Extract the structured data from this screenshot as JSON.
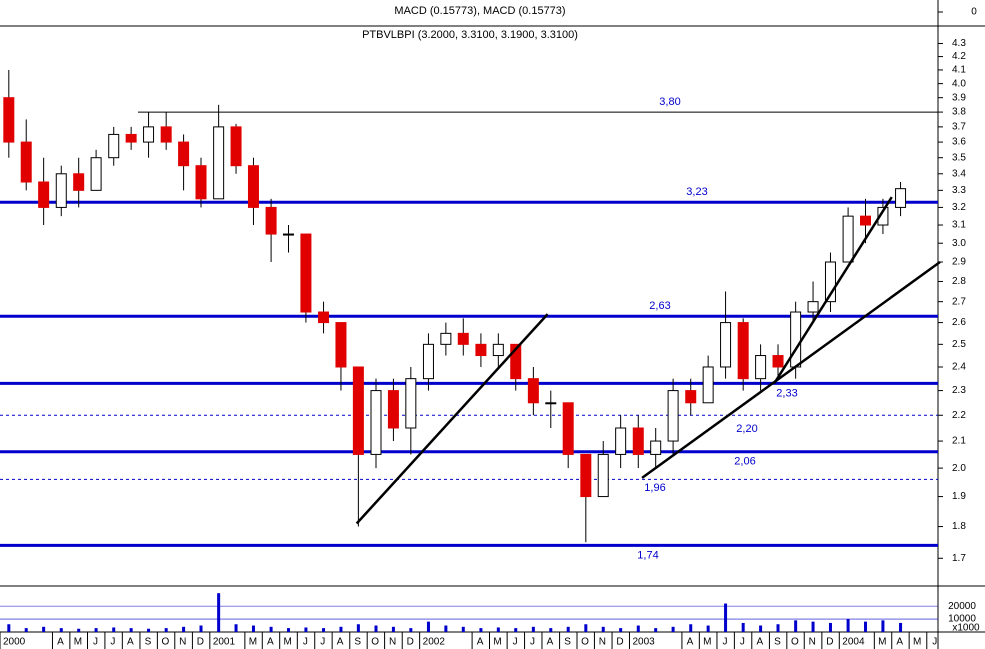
{
  "chart_data": {
    "type": "candlestick",
    "title": "PTBVLBPI (3.2000, 3.3100, 3.1900, 3.3100)",
    "indicator_label": "MACD (0.15773), MACD (0.15773)",
    "indicator_ticks": [
      0
    ],
    "up_color": "#ffffff",
    "down_color": "#e00000",
    "log": true,
    "ylim": [
      1.62,
      4.43
    ],
    "yticks": [
      1.7,
      1.8,
      1.9,
      {
        "value": 2,
        "label": "2.0"
      },
      2.1,
      2.2,
      2.3,
      2.4,
      2.5,
      2.6,
      2.7,
      2.8,
      2.9,
      {
        "value": 3,
        "label": "3.0"
      },
      3.1,
      3.2,
      3.3,
      3.4,
      3.5,
      3.6,
      3.7,
      3.8,
      3.9,
      {
        "value": 4,
        "label": "4.0"
      },
      4.1,
      4.2,
      4.3
    ],
    "xlim": [
      2000,
      2004.48
    ],
    "xticks": [
      2000,
      {
        "value": 2000.25,
        "label": "A"
      },
      {
        "value": 2000.333,
        "label": "M"
      },
      {
        "value": 2000.417,
        "label": "J"
      },
      {
        "value": 2000.5,
        "label": "J"
      },
      {
        "value": 2000.583,
        "label": "A"
      },
      {
        "value": 2000.667,
        "label": "S"
      },
      {
        "value": 2000.75,
        "label": "O"
      },
      {
        "value": 2000.833,
        "label": "N"
      },
      {
        "value": 2000.917,
        "label": "D"
      },
      2001,
      {
        "value": 2001.167,
        "label": "M"
      },
      {
        "value": 2001.25,
        "label": "A"
      },
      {
        "value": 2001.333,
        "label": "M"
      },
      {
        "value": 2001.417,
        "label": "J"
      },
      {
        "value": 2001.5,
        "label": "J"
      },
      {
        "value": 2001.583,
        "label": "A"
      },
      {
        "value": 2001.667,
        "label": "S"
      },
      {
        "value": 2001.75,
        "label": "O"
      },
      {
        "value": 2001.833,
        "label": "N"
      },
      {
        "value": 2001.917,
        "label": "D"
      },
      2002,
      {
        "value": 2002.25,
        "label": "A"
      },
      {
        "value": 2002.333,
        "label": "M"
      },
      {
        "value": 2002.417,
        "label": "J"
      },
      {
        "value": 2002.5,
        "label": "J"
      },
      {
        "value": 2002.583,
        "label": "A"
      },
      {
        "value": 2002.667,
        "label": "S"
      },
      {
        "value": 2002.75,
        "label": "O"
      },
      {
        "value": 2002.833,
        "label": "N"
      },
      {
        "value": 2002.917,
        "label": "D"
      },
      2003,
      {
        "value": 2003.25,
        "label": "A"
      },
      {
        "value": 2003.333,
        "label": "M"
      },
      {
        "value": 2003.417,
        "label": "J"
      },
      {
        "value": 2003.5,
        "label": "J"
      },
      {
        "value": 2003.583,
        "label": "A"
      },
      {
        "value": 2003.667,
        "label": "S"
      },
      {
        "value": 2003.75,
        "label": "O"
      },
      {
        "value": 2003.833,
        "label": "N"
      },
      {
        "value": 2003.917,
        "label": "D"
      },
      2004,
      {
        "value": 2004.167,
        "label": "M"
      },
      {
        "value": 2004.25,
        "label": "A"
      },
      {
        "value": 2004.333,
        "label": "M"
      },
      {
        "value": 2004.417,
        "label": "J"
      }
    ],
    "x": [
      2000.042,
      2000.125,
      2000.208,
      2000.292,
      2000.375,
      2000.458,
      2000.542,
      2000.625,
      2000.708,
      2000.792,
      2000.875,
      2000.958,
      2001.042,
      2001.125,
      2001.208,
      2001.292,
      2001.375,
      2001.458,
      2001.542,
      2001.625,
      2001.708,
      2001.792,
      2001.875,
      2001.958,
      2002.042,
      2002.125,
      2002.208,
      2002.292,
      2002.375,
      2002.458,
      2002.542,
      2002.625,
      2002.708,
      2002.792,
      2002.875,
      2002.958,
      2003.042,
      2003.125,
      2003.208,
      2003.292,
      2003.375,
      2003.458,
      2003.542,
      2003.625,
      2003.708,
      2003.792,
      2003.875,
      2003.958,
      2004.042,
      2004.125,
      2004.208,
      2004.292
    ],
    "open": [
      3.9,
      3.6,
      3.35,
      3.2,
      3.4,
      3.3,
      3.5,
      3.65,
      3.6,
      3.7,
      3.6,
      3.45,
      3.25,
      3.7,
      3.45,
      3.2,
      3.05,
      3.05,
      2.65,
      2.6,
      2.4,
      2.05,
      2.3,
      2.15,
      2.35,
      2.5,
      2.55,
      2.5,
      2.45,
      2.5,
      2.35,
      2.25,
      2.25,
      2.05,
      1.9,
      2.05,
      2.15,
      2.05,
      2.1,
      2.3,
      2.25,
      2.4,
      2.6,
      2.35,
      2.45,
      2.4,
      2.65,
      2.7,
      2.9,
      3.15,
      3.1,
      3.2
    ],
    "high": [
      4.1,
      3.75,
      3.5,
      3.45,
      3.5,
      3.55,
      3.7,
      3.7,
      3.8,
      3.8,
      3.65,
      3.5,
      3.85,
      3.72,
      3.5,
      3.25,
      3.1,
      3.05,
      2.7,
      2.6,
      2.4,
      2.35,
      2.35,
      2.4,
      2.55,
      2.6,
      2.62,
      2.55,
      2.55,
      2.5,
      2.4,
      2.3,
      2.25,
      2.05,
      2.1,
      2.2,
      2.2,
      2.15,
      2.35,
      2.35,
      2.45,
      2.75,
      2.62,
      2.5,
      2.5,
      2.7,
      2.8,
      2.95,
      3.2,
      3.25,
      3.25,
      3.35
    ],
    "low": [
      3.5,
      3.3,
      3.1,
      3.15,
      3.2,
      3.3,
      3.45,
      3.55,
      3.5,
      3.55,
      3.3,
      3.2,
      3.25,
      3.4,
      3.1,
      2.9,
      2.95,
      2.6,
      2.55,
      2.3,
      1.8,
      2.0,
      2.1,
      2.05,
      2.3,
      2.45,
      2.45,
      2.4,
      2.4,
      2.3,
      2.2,
      2.15,
      2.0,
      1.75,
      1.9,
      2.0,
      2.0,
      2.0,
      2.05,
      2.2,
      2.25,
      2.35,
      2.3,
      2.3,
      2.35,
      2.35,
      2.6,
      2.65,
      2.9,
      3.0,
      3.05,
      3.15
    ],
    "close": [
      3.6,
      3.35,
      3.2,
      3.4,
      3.3,
      3.5,
      3.65,
      3.6,
      3.7,
      3.6,
      3.45,
      3.25,
      3.7,
      3.45,
      3.2,
      3.05,
      3.05,
      2.65,
      2.6,
      2.4,
      2.05,
      2.3,
      2.15,
      2.35,
      2.5,
      2.55,
      2.5,
      2.45,
      2.5,
      2.35,
      2.25,
      2.25,
      2.05,
      1.9,
      2.05,
      2.15,
      2.05,
      2.1,
      2.3,
      2.25,
      2.4,
      2.6,
      2.35,
      2.45,
      2.4,
      2.65,
      2.7,
      2.9,
      3.15,
      3.1,
      3.2,
      3.31
    ],
    "levels": [
      {
        "value": {
          "value": 3.8,
          "label": "3,80"
        },
        "color": "#000000",
        "dashed": false
      },
      {
        "value": {
          "value": 3.23,
          "label": "3,23"
        },
        "color": "#0000cc",
        "dashed": false
      },
      {
        "value": {
          "value": 2.63,
          "label": "2,63"
        },
        "color": "#0000cc",
        "dashed": false
      },
      {
        "value": {
          "value": 2.33,
          "label": "2,33"
        },
        "color": "#0000cc",
        "dashed": false
      },
      {
        "value": {
          "value": 2.2,
          "label": "2,20"
        },
        "color": "#0000cc",
        "dashed": true
      },
      {
        "value": {
          "value": 2.06,
          "label": "2,06"
        },
        "color": "#0000cc",
        "dashed": false
      },
      {
        "value": {
          "value": 1.96,
          "label": "1,96"
        },
        "color": "#0000cc",
        "dashed": true
      },
      {
        "value": {
          "value": 1.74,
          "label": "1,74"
        },
        "color": "#0000cc",
        "dashed": false
      }
    ],
    "trendlines": [
      {
        "x": [
          2001.7,
          2002.61
        ],
        "y": [
          1.81,
          2.64
        ]
      },
      {
        "x": [
          2003.06,
          2004.48
        ],
        "y": [
          1.965,
          2.9
        ]
      },
      {
        "x": [
          2003.69,
          2004.25
        ],
        "y": [
          2.33,
          3.26
        ]
      }
    ],
    "volume": {
      "color": "#0000cc",
      "unit": "x1000",
      "ylim": [
        0,
        34000
      ],
      "yticks": [
        10000,
        20000
      ],
      "values": [
        6000,
        3000,
        4000,
        3000,
        2500,
        3000,
        3500,
        3000,
        2500,
        3000,
        4000,
        5000,
        30000,
        6000,
        5000,
        4000,
        3000,
        3500,
        3000,
        4000,
        6000,
        5000,
        4000,
        3000,
        8000,
        5000,
        4000,
        3000,
        3500,
        3000,
        4000,
        3000,
        4000,
        6000,
        4000,
        3000,
        5000,
        3000,
        4000,
        6000,
        5000,
        22000,
        7000,
        5000,
        6000,
        9000,
        8000,
        7000,
        10000,
        8000,
        9000,
        7000
      ]
    }
  }
}
